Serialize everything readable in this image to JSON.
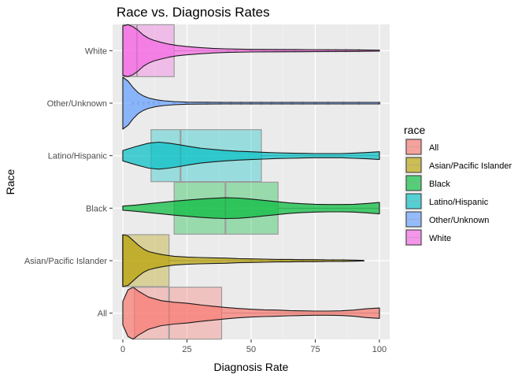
{
  "chart_data": {
    "type": "violin",
    "title": "Race vs. Diagnosis Rates",
    "xlabel": "Diagnosis Rate",
    "ylabel": "Race",
    "xlim": [
      -4,
      104
    ],
    "x_ticks": [
      0,
      25,
      50,
      75,
      100
    ],
    "x_tick_labels": [
      "0",
      "25",
      "50",
      "75",
      "100"
    ],
    "grid": true,
    "legend": {
      "title": "race",
      "position": "right",
      "entries": [
        "All",
        "Asian/Pacific Islander",
        "Black",
        "Latino/Hispanic",
        "Other/Unknown",
        "White"
      ]
    },
    "categories": [
      "All",
      "Asian/Pacific Islander",
      "Black",
      "Latino/Hispanic",
      "Other/Unknown",
      "White"
    ],
    "colors": {
      "All": "#F8766D",
      "Asian/Pacific Islander": "#B79F00",
      "Black": "#00BA38",
      "Latino/Hispanic": "#00BFC4",
      "Other/Unknown": "#619CFF",
      "White": "#F564E3"
    },
    "series": [
      {
        "name": "All",
        "box": {
          "q1": 4.5,
          "median": 18,
          "q3": 38.5,
          "min": 0,
          "max": 100
        },
        "density": [
          [
            0,
            0.45
          ],
          [
            2,
            0.9
          ],
          [
            4,
            1.0
          ],
          [
            6,
            0.85
          ],
          [
            10,
            0.62
          ],
          [
            15,
            0.48
          ],
          [
            20,
            0.42
          ],
          [
            25,
            0.38
          ],
          [
            30,
            0.32
          ],
          [
            35,
            0.27
          ],
          [
            40,
            0.22
          ],
          [
            45,
            0.18
          ],
          [
            50,
            0.15
          ],
          [
            55,
            0.13
          ],
          [
            60,
            0.12
          ],
          [
            65,
            0.1
          ],
          [
            70,
            0.09
          ],
          [
            75,
            0.08
          ],
          [
            80,
            0.08
          ],
          [
            85,
            0.09
          ],
          [
            90,
            0.12
          ],
          [
            95,
            0.17
          ],
          [
            100,
            0.2
          ]
        ],
        "outliers": []
      },
      {
        "name": "Asian/Pacific Islander",
        "box": {
          "q1": 0,
          "median": 0,
          "q3": 18,
          "min": 0,
          "max": 94
        },
        "density": [
          [
            0,
            1.0
          ],
          [
            2,
            0.95
          ],
          [
            4,
            0.78
          ],
          [
            6,
            0.6
          ],
          [
            8,
            0.45
          ],
          [
            10,
            0.35
          ],
          [
            13,
            0.28
          ],
          [
            16,
            0.22
          ],
          [
            20,
            0.17
          ],
          [
            25,
            0.14
          ],
          [
            30,
            0.12
          ],
          [
            35,
            0.11
          ],
          [
            40,
            0.1
          ],
          [
            45,
            0.08
          ],
          [
            50,
            0.07
          ],
          [
            55,
            0.06
          ],
          [
            60,
            0.05
          ],
          [
            65,
            0.05
          ],
          [
            70,
            0.04
          ],
          [
            75,
            0.04
          ],
          [
            80,
            0.03
          ],
          [
            85,
            0.03
          ],
          [
            90,
            0.02
          ],
          [
            94,
            0.01
          ]
        ],
        "outliers": [
          50,
          54,
          58,
          62,
          66,
          70,
          74,
          78,
          82,
          86
        ]
      },
      {
        "name": "Black",
        "box": {
          "q1": 20,
          "median": 40,
          "q3": 60.5,
          "min": 0,
          "max": 100
        },
        "density": [
          [
            0,
            0.08
          ],
          [
            5,
            0.12
          ],
          [
            10,
            0.17
          ],
          [
            15,
            0.22
          ],
          [
            20,
            0.27
          ],
          [
            25,
            0.31
          ],
          [
            30,
            0.35
          ],
          [
            35,
            0.38
          ],
          [
            40,
            0.4
          ],
          [
            45,
            0.39
          ],
          [
            50,
            0.35
          ],
          [
            55,
            0.3
          ],
          [
            60,
            0.25
          ],
          [
            65,
            0.2
          ],
          [
            70,
            0.17
          ],
          [
            75,
            0.15
          ],
          [
            80,
            0.14
          ],
          [
            85,
            0.14
          ],
          [
            90,
            0.15
          ],
          [
            95,
            0.18
          ],
          [
            100,
            0.22
          ]
        ],
        "outliers": []
      },
      {
        "name": "Latino/Hispanic",
        "box": {
          "q1": 11,
          "median": 22.5,
          "q3": 54,
          "min": 0,
          "max": 100
        },
        "density": [
          [
            0,
            0.2
          ],
          [
            5,
            0.35
          ],
          [
            10,
            0.48
          ],
          [
            14,
            0.52
          ],
          [
            18,
            0.48
          ],
          [
            22,
            0.42
          ],
          [
            26,
            0.35
          ],
          [
            30,
            0.29
          ],
          [
            35,
            0.24
          ],
          [
            40,
            0.2
          ],
          [
            45,
            0.17
          ],
          [
            50,
            0.15
          ],
          [
            55,
            0.13
          ],
          [
            60,
            0.11
          ],
          [
            65,
            0.1
          ],
          [
            70,
            0.09
          ],
          [
            75,
            0.08
          ],
          [
            80,
            0.08
          ],
          [
            85,
            0.08
          ],
          [
            90,
            0.1
          ],
          [
            95,
            0.12
          ],
          [
            100,
            0.15
          ]
        ],
        "outliers": []
      },
      {
        "name": "Other/Unknown",
        "box": {
          "q1": 0,
          "median": 0,
          "q3": 0,
          "min": 0,
          "max": 0
        },
        "density": [
          [
            0,
            1.0
          ],
          [
            2,
            0.85
          ],
          [
            4,
            0.6
          ],
          [
            6,
            0.4
          ],
          [
            8,
            0.28
          ],
          [
            10,
            0.2
          ],
          [
            13,
            0.13
          ],
          [
            16,
            0.09
          ],
          [
            20,
            0.06
          ],
          [
            25,
            0.04
          ],
          [
            30,
            0.035
          ],
          [
            40,
            0.03
          ],
          [
            50,
            0.03
          ],
          [
            60,
            0.03
          ],
          [
            70,
            0.03
          ],
          [
            80,
            0.03
          ],
          [
            90,
            0.03
          ],
          [
            100,
            0.03
          ]
        ],
        "outliers": [
          4,
          6,
          8,
          10,
          12,
          14,
          20,
          25,
          33,
          38,
          42,
          46,
          50,
          54,
          58,
          62,
          66,
          70,
          75,
          80,
          86,
          92,
          100
        ]
      },
      {
        "name": "White",
        "box": {
          "q1": 0,
          "median": 5.5,
          "q3": 20,
          "min": 0,
          "max": 100
        },
        "density": [
          [
            0,
            0.95
          ],
          [
            2,
            1.0
          ],
          [
            4,
            0.92
          ],
          [
            6,
            0.78
          ],
          [
            8,
            0.6
          ],
          [
            10,
            0.48
          ],
          [
            12,
            0.4
          ],
          [
            15,
            0.32
          ],
          [
            18,
            0.25
          ],
          [
            21,
            0.2
          ],
          [
            25,
            0.16
          ],
          [
            30,
            0.12
          ],
          [
            35,
            0.09
          ],
          [
            40,
            0.07
          ],
          [
            50,
            0.05
          ],
          [
            60,
            0.045
          ],
          [
            70,
            0.04
          ],
          [
            80,
            0.035
          ],
          [
            90,
            0.03
          ],
          [
            100,
            0.02
          ]
        ],
        "outliers": [
          41,
          44,
          50,
          55,
          60,
          63,
          67,
          70,
          80,
          83,
          87,
          92
        ]
      }
    ]
  }
}
